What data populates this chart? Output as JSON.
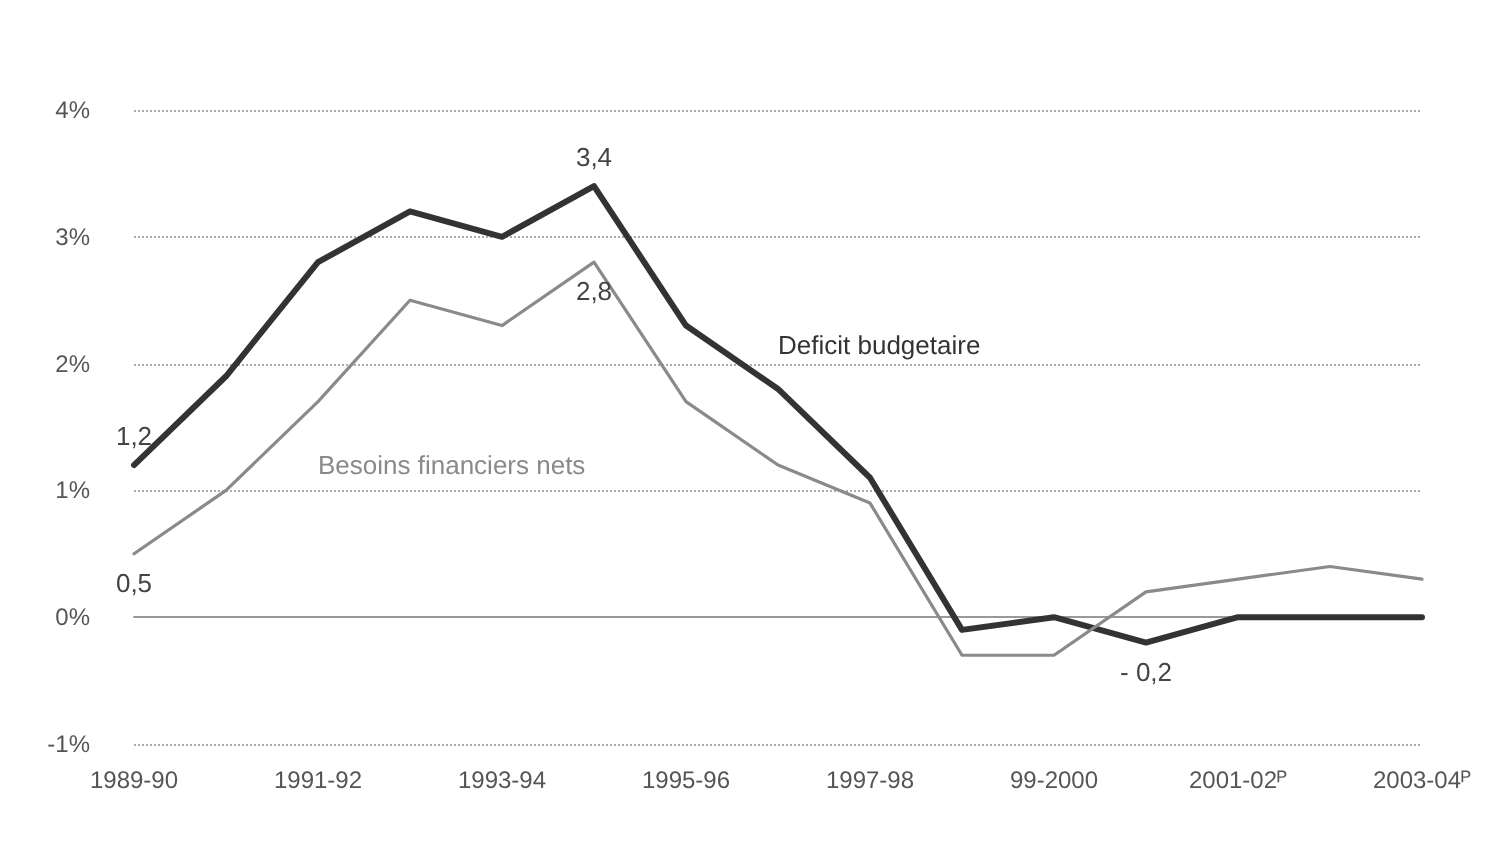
{
  "chart_data": {
    "type": "line",
    "categories": [
      "1989-90",
      null,
      "1991-92",
      null,
      "1993-94",
      null,
      "1995-96",
      null,
      "1997-98",
      null,
      "99-2000",
      null,
      "2001-02ᴾ",
      null,
      "2003-04ᴾ"
    ],
    "series": [
      {
        "name": "Deficit budgetaire",
        "color": "#333333",
        "values": [
          1.2,
          1.9,
          2.8,
          3.2,
          3.0,
          3.4,
          2.3,
          1.8,
          1.1,
          -0.1,
          0.0,
          -0.2,
          0.0,
          0.0,
          0.0
        ],
        "value_labels": [
          "1,2",
          null,
          null,
          null,
          null,
          "3,4",
          null,
          null,
          null,
          null,
          null,
          "- 0,2",
          null,
          null,
          null
        ]
      },
      {
        "name": "Besoins financiers nets",
        "color": "#8a8a8a",
        "values": [
          0.5,
          1.0,
          1.7,
          2.5,
          2.3,
          2.8,
          1.7,
          1.2,
          0.9,
          -0.3,
          -0.3,
          0.2,
          0.3,
          0.4,
          0.3
        ],
        "value_labels": [
          "0,5",
          null,
          null,
          null,
          null,
          "2,8",
          null,
          null,
          null,
          null,
          null,
          null,
          null,
          null,
          null
        ]
      }
    ],
    "ylim": [
      -1,
      4
    ],
    "yticks": [
      {
        "value": -1,
        "label": "-1%"
      },
      {
        "value": 0,
        "label": "0%"
      },
      {
        "value": 1,
        "label": "1%"
      },
      {
        "value": 2,
        "label": "2%"
      },
      {
        "value": 3,
        "label": "3%"
      },
      {
        "value": 4,
        "label": "4%"
      }
    ],
    "grid": "y",
    "legend": false,
    "marker": "none",
    "line_style": "solid"
  }
}
